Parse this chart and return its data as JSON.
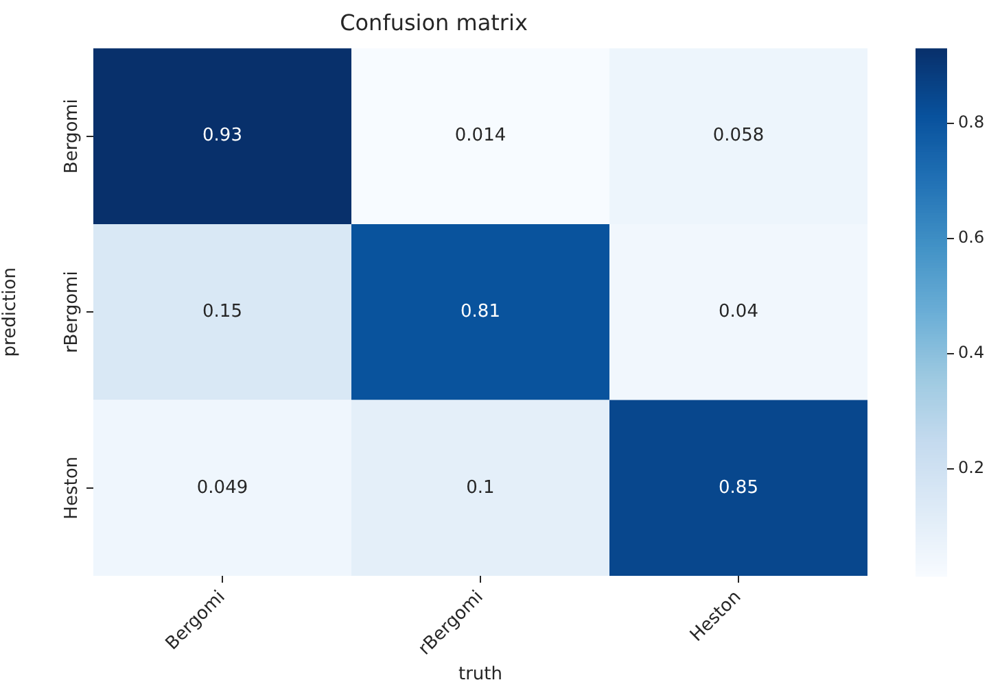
{
  "chart_data": {
    "type": "heatmap",
    "title": "Confusion matrix",
    "xlabel": "truth",
    "ylabel": "prediction",
    "categories": [
      "Bergomi",
      "rBergomi",
      "Heston"
    ],
    "y_categories": [
      "Bergomi",
      "rBergomi",
      "Heston"
    ],
    "cells": [
      [
        0.93,
        0.014,
        0.058
      ],
      [
        0.15,
        0.81,
        0.04
      ],
      [
        0.049,
        0.1,
        0.85
      ]
    ],
    "clim": [
      0.014,
      0.93
    ],
    "cticks": [
      0.2,
      0.4,
      0.6,
      0.8
    ],
    "data_labels": true
  }
}
